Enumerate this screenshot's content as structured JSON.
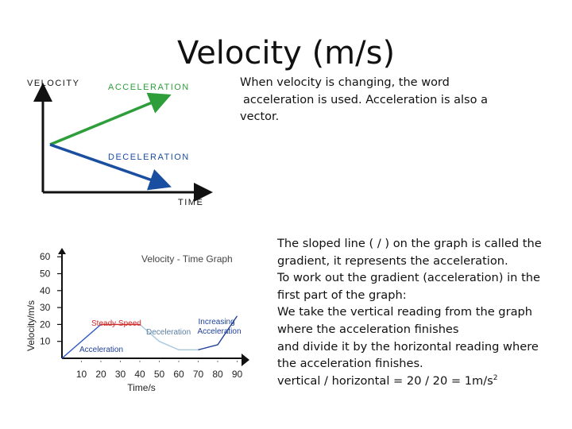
{
  "slide": {
    "title": "Velocity (m/s)",
    "para1": {
      "line1": "When velocity is changing, the word",
      "line2": "acceleration is used. Acceleration is also a",
      "line3": "vector."
    },
    "para2": {
      "line1": "The sloped line ( / ) on the graph is called the",
      "line2": "gradient, it represents the acceleration.",
      "line3": "To work out the gradient (acceleration) in the",
      "line4": "first part of the graph:",
      "line5": "We take the vertical reading from the graph",
      "line6": "where the acceleration finishes",
      "line7": "and divide it by the horizontal reading where",
      "line8": "the acceleration finishes.",
      "line9_main": "vertical / horizontal = 20 / 20 = 1m/s",
      "line9_sup": "2"
    }
  },
  "diagram_top": {
    "y_label": "VELOCITY",
    "x_label": "TIME",
    "accel_label": "ACCELERATION",
    "decel_label": "DECELERATION",
    "colors": {
      "acceleration": "#2e9e3a",
      "deceleration": "#1a4ea0",
      "axis": "#111111"
    }
  },
  "chart_data": {
    "type": "line",
    "title": "Velocity - Time Graph",
    "xlabel": "Time/s",
    "ylabel": "Velocity/m/s",
    "x_ticks": [
      "10",
      "20",
      "30",
      "40",
      "50",
      "60",
      "70",
      "80",
      "90"
    ],
    "y_ticks": [
      "10",
      "20",
      "30",
      "40",
      "50",
      "60"
    ],
    "annotations": [
      "Steady Speed",
      "Deceleration",
      "Increasing Acceleration",
      "Acceleration"
    ],
    "series": [
      {
        "values_x": [
          0,
          20,
          30,
          40,
          50,
          60,
          70,
          80,
          90
        ],
        "values_y": [
          0,
          20,
          20,
          20,
          10,
          5,
          5,
          8,
          25
        ]
      }
    ],
    "colors": {
      "acceleration": "#2b55c6",
      "steady": "#d02a2a",
      "deceleration": "#a8c8e0",
      "increasing": "#1f3f9a"
    }
  }
}
